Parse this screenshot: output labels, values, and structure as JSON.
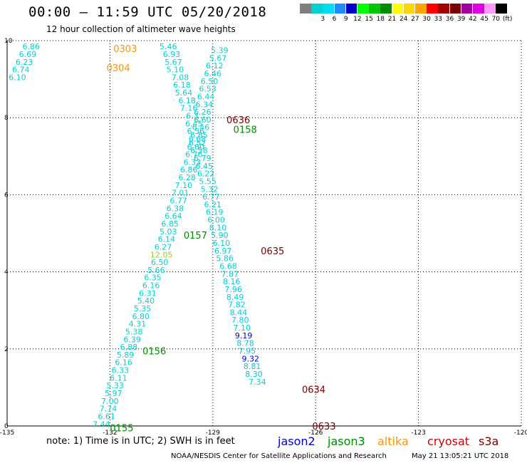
{
  "header": {
    "title": "00:00 – 11:59 UTC 05/20/2018",
    "subtitle": "12 hour collection of altimeter wave heights"
  },
  "legend": {
    "unit": "(ft)",
    "entries": [
      {
        "label": "",
        "color": "#7f7f7f"
      },
      {
        "label": "3",
        "color": "#00d2d2"
      },
      {
        "label": "6",
        "color": "#00dcf0"
      },
      {
        "label": "9",
        "color": "#1e8cff"
      },
      {
        "label": "12",
        "color": "#0000cd"
      },
      {
        "label": "15",
        "color": "#00ff00"
      },
      {
        "label": "18",
        "color": "#00c800"
      },
      {
        "label": "21",
        "color": "#008c00"
      },
      {
        "label": "24",
        "color": "#ffff00"
      },
      {
        "label": "27",
        "color": "#ffd700"
      },
      {
        "label": "30",
        "color": "#ffa500"
      },
      {
        "label": "33",
        "color": "#ff0000"
      },
      {
        "label": "36",
        "color": "#a00000"
      },
      {
        "label": "39",
        "color": "#780000"
      },
      {
        "label": "42",
        "color": "#a000a0"
      },
      {
        "label": "45",
        "color": "#e000e0"
      },
      {
        "label": "70",
        "color": "#ff96ff"
      },
      {
        "label": "",
        "color": "#000000"
      }
    ]
  },
  "map": {
    "lon_ticks": [
      "-135",
      "-132",
      "-129",
      "-126",
      "-123",
      "-120"
    ],
    "lat_ticks": [
      "0",
      "2",
      "4",
      "6",
      "8",
      "10"
    ],
    "lon_range": [
      -135,
      -120
    ],
    "lat_range": [
      0,
      10
    ],
    "grid": "dotted"
  },
  "colors": {
    "light": "#00d2d2",
    "cyan": "#00c8e6",
    "blue": "#0000cd",
    "lightgreen": "#9acd32",
    "dark_green": "#008c00",
    "orange": "#ff9600",
    "dark_red": "#780000"
  },
  "passes": [
    {
      "id": "0303",
      "lon": -131.9,
      "lat": 9.8,
      "color": "orange"
    },
    {
      "id": "0304",
      "lon": -132.1,
      "lat": 9.3,
      "color": "orange"
    },
    {
      "id": "0636",
      "lon": -128.6,
      "lat": 7.95,
      "color": "dark_red"
    },
    {
      "id": "0158",
      "lon": -128.4,
      "lat": 7.7,
      "color": "dark_green"
    },
    {
      "id": "0157",
      "lon": -129.85,
      "lat": 4.95,
      "color": "dark_green"
    },
    {
      "id": "0635",
      "lon": -127.6,
      "lat": 4.55,
      "color": "dark_red"
    },
    {
      "id": "0156",
      "lon": -131.05,
      "lat": 1.95,
      "color": "dark_green"
    },
    {
      "id": "0634",
      "lon": -126.4,
      "lat": 0.95,
      "color": "dark_red"
    },
    {
      "id": "0155",
      "lon": -132.0,
      "lat": -0.05,
      "color": "dark_green"
    },
    {
      "id": "0633",
      "lon": -126.1,
      "lat": 0.0,
      "color": "dark_red"
    }
  ],
  "observations": [
    {
      "v": "6.86",
      "lon": -134.3,
      "lat": 9.85,
      "c": "light"
    },
    {
      "v": "6.69",
      "lon": -134.4,
      "lat": 9.65,
      "c": "light"
    },
    {
      "v": "6.23",
      "lon": -134.5,
      "lat": 9.45,
      "c": "light"
    },
    {
      "v": "6.74",
      "lon": -134.6,
      "lat": 9.25,
      "c": "light"
    },
    {
      "v": "6.10",
      "lon": -134.7,
      "lat": 9.05,
      "c": "light"
    },
    {
      "v": "5.46",
      "lon": -130.3,
      "lat": 9.85,
      "c": "light"
    },
    {
      "v": "6.93",
      "lon": -130.2,
      "lat": 9.65,
      "c": "light"
    },
    {
      "v": "5.67",
      "lon": -130.15,
      "lat": 9.45,
      "c": "light"
    },
    {
      "v": "5.10",
      "lon": -130.1,
      "lat": 9.25,
      "c": "light"
    },
    {
      "v": "7.08",
      "lon": -129.95,
      "lat": 9.05,
      "c": "light"
    },
    {
      "v": "6.18",
      "lon": -129.9,
      "lat": 8.85,
      "c": "light"
    },
    {
      "v": "5.64",
      "lon": -129.85,
      "lat": 8.65,
      "c": "light"
    },
    {
      "v": "6.18",
      "lon": -129.75,
      "lat": 8.45,
      "c": "light"
    },
    {
      "v": "7.16",
      "lon": -129.7,
      "lat": 8.25,
      "c": "light"
    },
    {
      "v": "6.3",
      "lon": -129.6,
      "lat": 8.05,
      "c": "light"
    },
    {
      "v": "6.45",
      "lon": -129.55,
      "lat": 7.85,
      "c": "light"
    },
    {
      "v": "6.56",
      "lon": -129.5,
      "lat": 7.65,
      "c": "light"
    },
    {
      "v": "6.68",
      "lon": -129.45,
      "lat": 7.45,
      "c": "light"
    },
    {
      "v": "6.60",
      "lon": -129.5,
      "lat": 7.25,
      "c": "light"
    },
    {
      "v": "6.76",
      "lon": -129.55,
      "lat": 7.05,
      "c": "light"
    },
    {
      "v": "6.33",
      "lon": -129.6,
      "lat": 6.85,
      "c": "light"
    },
    {
      "v": "6.86",
      "lon": -129.7,
      "lat": 6.65,
      "c": "light"
    },
    {
      "v": "6.28",
      "lon": -129.75,
      "lat": 6.45,
      "c": "light"
    },
    {
      "v": "7.10",
      "lon": -129.85,
      "lat": 6.25,
      "c": "light"
    },
    {
      "v": "7.01",
      "lon": -129.95,
      "lat": 6.05,
      "c": "light"
    },
    {
      "v": "6.77",
      "lon": -130.0,
      "lat": 5.85,
      "c": "light"
    },
    {
      "v": "6.38",
      "lon": -130.1,
      "lat": 5.65,
      "c": "light"
    },
    {
      "v": "6.64",
      "lon": -130.15,
      "lat": 5.45,
      "c": "light"
    },
    {
      "v": "6.85",
      "lon": -130.25,
      "lat": 5.25,
      "c": "light"
    },
    {
      "v": "5.03",
      "lon": -130.3,
      "lat": 5.05,
      "c": "light"
    },
    {
      "v": "6.14",
      "lon": -130.35,
      "lat": 4.85,
      "c": "light"
    },
    {
      "v": "6.27",
      "lon": -130.45,
      "lat": 4.65,
      "c": "light"
    },
    {
      "v": "12.05",
      "lon": -130.5,
      "lat": 4.45,
      "c": "lightgreen"
    },
    {
      "v": "6.50",
      "lon": -130.55,
      "lat": 4.25,
      "c": "light"
    },
    {
      "v": "5.66",
      "lon": -130.65,
      "lat": 4.05,
      "c": "light"
    },
    {
      "v": "6.35",
      "lon": -130.75,
      "lat": 3.85,
      "c": "light"
    },
    {
      "v": "6.16",
      "lon": -130.8,
      "lat": 3.65,
      "c": "light"
    },
    {
      "v": "6.31",
      "lon": -130.9,
      "lat": 3.45,
      "c": "light"
    },
    {
      "v": "5.40",
      "lon": -130.95,
      "lat": 3.25,
      "c": "light"
    },
    {
      "v": "5.35",
      "lon": -131.05,
      "lat": 3.05,
      "c": "light"
    },
    {
      "v": "6.80",
      "lon": -131.1,
      "lat": 2.85,
      "c": "light"
    },
    {
      "v": "4.31",
      "lon": -131.2,
      "lat": 2.65,
      "c": "light"
    },
    {
      "v": "5.38",
      "lon": -131.3,
      "lat": 2.45,
      "c": "light"
    },
    {
      "v": "6.39",
      "lon": -131.35,
      "lat": 2.25,
      "c": "light"
    },
    {
      "v": "6.88",
      "lon": -131.45,
      "lat": 2.05,
      "c": "light"
    },
    {
      "v": "5.89",
      "lon": -131.55,
      "lat": 1.85,
      "c": "light"
    },
    {
      "v": "6.16",
      "lon": -131.6,
      "lat": 1.65,
      "c": "light"
    },
    {
      "v": "6.33",
      "lon": -131.7,
      "lat": 1.45,
      "c": "light"
    },
    {
      "v": "6.11",
      "lon": -131.75,
      "lat": 1.25,
      "c": "light"
    },
    {
      "v": "5.33",
      "lon": -131.85,
      "lat": 1.05,
      "c": "light"
    },
    {
      "v": "5.97",
      "lon": -131.9,
      "lat": 0.85,
      "c": "light"
    },
    {
      "v": "7.00",
      "lon": -132.0,
      "lat": 0.65,
      "c": "light"
    },
    {
      "v": "7.74",
      "lon": -132.05,
      "lat": 0.45,
      "c": "light"
    },
    {
      "v": "6.61",
      "lon": -132.1,
      "lat": 0.25,
      "c": "light"
    },
    {
      "v": "7.44",
      "lon": -132.25,
      "lat": 0.05,
      "c": "light"
    },
    {
      "v": "5.39",
      "lon": -128.8,
      "lat": 9.75,
      "c": "light"
    },
    {
      "v": "5.67",
      "lon": -128.85,
      "lat": 9.55,
      "c": "light"
    },
    {
      "v": "6.12",
      "lon": -128.95,
      "lat": 9.35,
      "c": "light"
    },
    {
      "v": "6.46",
      "lon": -129.0,
      "lat": 9.15,
      "c": "light"
    },
    {
      "v": "6.50",
      "lon": -129.1,
      "lat": 8.95,
      "c": "light"
    },
    {
      "v": "6.53",
      "lon": -129.15,
      "lat": 8.75,
      "c": "light"
    },
    {
      "v": "6.44",
      "lon": -129.2,
      "lat": 8.55,
      "c": "light"
    },
    {
      "v": "6.34",
      "lon": -129.25,
      "lat": 8.35,
      "c": "light"
    },
    {
      "v": "6.26",
      "lon": -129.3,
      "lat": 8.15,
      "c": "light"
    },
    {
      "v": "6.60",
      "lon": -129.3,
      "lat": 7.95,
      "c": "light"
    },
    {
      "v": "6.46",
      "lon": -129.35,
      "lat": 7.75,
      "c": "light"
    },
    {
      "v": "6.85",
      "lon": -129.4,
      "lat": 7.55,
      "c": "light"
    },
    {
      "v": "6.52",
      "lon": -129.45,
      "lat": 7.35,
      "c": "light"
    },
    {
      "v": "6.58",
      "lon": -129.4,
      "lat": 7.15,
      "c": "light"
    },
    {
      "v": "6.79",
      "lon": -129.3,
      "lat": 6.95,
      "c": "light"
    },
    {
      "v": "6.45",
      "lon": -129.25,
      "lat": 6.75,
      "c": "light"
    },
    {
      "v": "6.22",
      "lon": -129.2,
      "lat": 6.55,
      "c": "light"
    },
    {
      "v": "5.55",
      "lon": -129.15,
      "lat": 6.35,
      "c": "light"
    },
    {
      "v": "5.32",
      "lon": -129.1,
      "lat": 6.15,
      "c": "light"
    },
    {
      "v": "6.77",
      "lon": -129.05,
      "lat": 5.95,
      "c": "light"
    },
    {
      "v": "6.21",
      "lon": -129.0,
      "lat": 5.75,
      "c": "light"
    },
    {
      "v": "6.19",
      "lon": -128.95,
      "lat": 5.55,
      "c": "light"
    },
    {
      "v": "6.00",
      "lon": -128.9,
      "lat": 5.35,
      "c": "light"
    },
    {
      "v": "8.10",
      "lon": -128.85,
      "lat": 5.15,
      "c": "cyan"
    },
    {
      "v": "5.90",
      "lon": -128.8,
      "lat": 4.95,
      "c": "light"
    },
    {
      "v": "6.10",
      "lon": -128.75,
      "lat": 4.75,
      "c": "light"
    },
    {
      "v": "6.97",
      "lon": -128.7,
      "lat": 4.55,
      "c": "light"
    },
    {
      "v": "5.86",
      "lon": -128.65,
      "lat": 4.35,
      "c": "light"
    },
    {
      "v": "6.68",
      "lon": -128.55,
      "lat": 4.15,
      "c": "light"
    },
    {
      "v": "7.87",
      "lon": -128.5,
      "lat": 3.95,
      "c": "cyan"
    },
    {
      "v": "8.16",
      "lon": -128.45,
      "lat": 3.75,
      "c": "cyan"
    },
    {
      "v": "7.96",
      "lon": -128.4,
      "lat": 3.55,
      "c": "cyan"
    },
    {
      "v": "8.49",
      "lon": -128.35,
      "lat": 3.35,
      "c": "cyan"
    },
    {
      "v": "7.82",
      "lon": -128.3,
      "lat": 3.15,
      "c": "cyan"
    },
    {
      "v": "8.44",
      "lon": -128.25,
      "lat": 2.95,
      "c": "cyan"
    },
    {
      "v": "7.80",
      "lon": -128.2,
      "lat": 2.75,
      "c": "cyan"
    },
    {
      "v": "7.10",
      "lon": -128.15,
      "lat": 2.55,
      "c": "light"
    },
    {
      "v": "9.19",
      "lon": -128.1,
      "lat": 2.35,
      "c": "blue"
    },
    {
      "v": "8.78",
      "lon": -128.05,
      "lat": 2.15,
      "c": "cyan"
    },
    {
      "v": "7.95",
      "lon": -128.0,
      "lat": 1.95,
      "c": "cyan"
    },
    {
      "v": "9.32",
      "lon": -127.9,
      "lat": 1.75,
      "c": "blue"
    },
    {
      "v": "8.81",
      "lon": -127.85,
      "lat": 1.55,
      "c": "cyan"
    },
    {
      "v": "8.30",
      "lon": -127.8,
      "lat": 1.35,
      "c": "cyan"
    },
    {
      "v": "7.34",
      "lon": -127.7,
      "lat": 1.15,
      "c": "light"
    }
  ],
  "footer": {
    "note": "note:  1) Time is in UTC;  2) SWH is in feet",
    "satellites": [
      {
        "name": "jason2",
        "color": "#0000cd"
      },
      {
        "name": "jason3",
        "color": "#008c00"
      },
      {
        "name": "altika",
        "color": "#ff9600"
      },
      {
        "name": "cryosat",
        "color": "#cc0000"
      },
      {
        "name": "s3a",
        "color": "#780000"
      }
    ],
    "credit": "NOAA/NESDIS Center for Satellite Applications and Research",
    "timestamp": "May 21 13:05:21 UTC 2018"
  }
}
